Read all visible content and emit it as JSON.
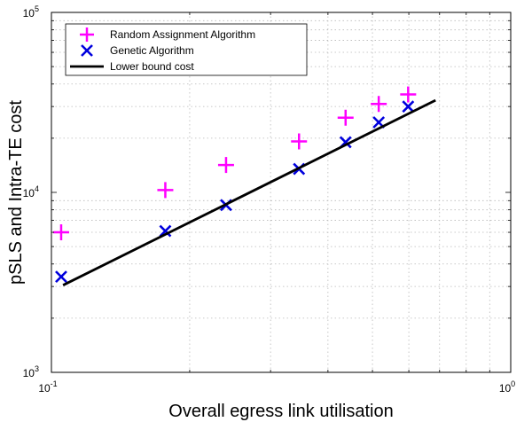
{
  "chart_data": {
    "type": "scatter",
    "xscale": "log",
    "yscale": "log",
    "xlim": [
      0.1,
      1
    ],
    "ylim": [
      1000,
      100000
    ],
    "xlabel": "Overall egress link utilisation",
    "ylabel": "pSLS and Intra-TE cost",
    "grid": true,
    "legend_position": "top-left",
    "x_ticks": [
      {
        "base": "10",
        "exp": "-1",
        "value": 0.1
      },
      {
        "base": "10",
        "exp": "0",
        "value": 1
      }
    ],
    "y_ticks": [
      {
        "base": "10",
        "exp": "3",
        "value": 1000
      },
      {
        "base": "10",
        "exp": "4",
        "value": 10000
      },
      {
        "base": "10",
        "exp": "5",
        "value": 100000
      }
    ],
    "series": [
      {
        "name": "Random Assignment Algorithm",
        "marker": "plus",
        "color": "#ff00ff",
        "points": [
          {
            "x": 0.105,
            "y": 6000
          },
          {
            "x": 0.177,
            "y": 10300
          },
          {
            "x": 0.24,
            "y": 14200
          },
          {
            "x": 0.346,
            "y": 19200
          },
          {
            "x": 0.437,
            "y": 26000
          },
          {
            "x": 0.516,
            "y": 31000
          },
          {
            "x": 0.598,
            "y": 35000
          }
        ]
      },
      {
        "name": "Genetic Algorithm",
        "marker": "x",
        "color": "#0000dd",
        "points": [
          {
            "x": 0.105,
            "y": 3400
          },
          {
            "x": 0.177,
            "y": 6100
          },
          {
            "x": 0.24,
            "y": 8500
          },
          {
            "x": 0.346,
            "y": 13500
          },
          {
            "x": 0.437,
            "y": 19000
          },
          {
            "x": 0.516,
            "y": 24500
          },
          {
            "x": 0.598,
            "y": 30000
          }
        ]
      },
      {
        "name": "Lower bound cost",
        "marker": "line",
        "color": "#000000",
        "points": [
          {
            "x": 0.106,
            "y": 3050
          },
          {
            "x": 0.686,
            "y": 32500
          }
        ]
      }
    ]
  }
}
